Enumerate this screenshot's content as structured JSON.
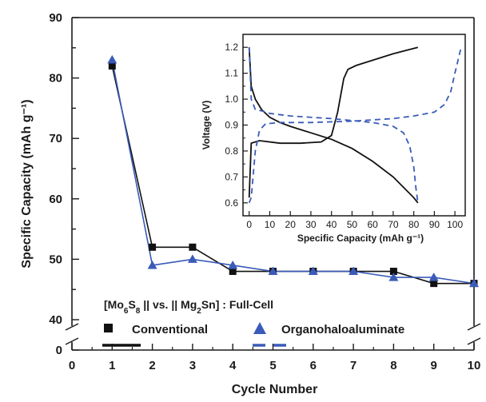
{
  "chart_data": [
    {
      "type": "line",
      "xlabel": "Cycle Number",
      "ylabel": "Specific Capacity (mAh g⁻¹)",
      "xlim": [
        0,
        10
      ],
      "ylim": [
        40,
        90
      ],
      "y_axis_break": true,
      "x_ticks": [
        "0",
        "1",
        "2",
        "3",
        "4",
        "5",
        "6",
        "7",
        "8",
        "9",
        "10"
      ],
      "y_ticks": [
        "40",
        "50",
        "60",
        "70",
        "80",
        "90"
      ],
      "y_break_zero_label": "0",
      "legend": {
        "title_parts": [
          "[Mo",
          "6",
          "S",
          "8",
          " || vs. || Mg",
          "2",
          "Sn] : Full-Cell"
        ],
        "placement": "bottom-left"
      },
      "series": [
        {
          "name": "Conventional",
          "marker": "square",
          "color": "#111111",
          "x": [
            1,
            2,
            3,
            4,
            5,
            6,
            7,
            8,
            9,
            10
          ],
          "y": [
            82,
            52,
            52,
            48,
            48,
            48,
            48,
            48,
            46,
            46
          ]
        },
        {
          "name": "Organohaloaluminate",
          "marker": "triangle",
          "color": "#3a5bb8",
          "x": [
            1,
            2,
            3,
            4,
            5,
            6,
            7,
            8,
            9,
            10
          ],
          "y": [
            83,
            49,
            50,
            49,
            48,
            48,
            48,
            47,
            47,
            46
          ]
        }
      ]
    },
    {
      "type": "line",
      "inset": true,
      "xlabel": "Specific Capacity (mAh g⁻¹)",
      "ylabel": "Voltage (V)",
      "xlim": [
        -3,
        105
      ],
      "ylim": [
        0.55,
        1.25
      ],
      "x_ticks": [
        "0",
        "10",
        "20",
        "30",
        "40",
        "50",
        "60",
        "70",
        "80",
        "90",
        "100"
      ],
      "y_ticks": [
        "0.6",
        "0.7",
        "0.8",
        "0.9",
        "1.0",
        "1.1",
        "1.2"
      ],
      "series": [
        {
          "style": "solid",
          "color": "#111111",
          "curves": [
            {
              "x": [
                0,
                1,
                5,
                15,
                25,
                35,
                40,
                43,
                46,
                48,
                52,
                60,
                70,
                82
              ],
              "y": [
                0.62,
                0.83,
                0.84,
                0.83,
                0.83,
                0.835,
                0.86,
                0.95,
                1.08,
                1.115,
                1.13,
                1.15,
                1.175,
                1.2
              ]
            },
            {
              "x": [
                0,
                1,
                3,
                6,
                10,
                15,
                20,
                30,
                40,
                50,
                60,
                70,
                80,
                82
              ],
              "y": [
                1.2,
                1.05,
                1.0,
                0.96,
                0.93,
                0.91,
                0.895,
                0.87,
                0.845,
                0.81,
                0.76,
                0.7,
                0.62,
                0.6
              ]
            }
          ]
        },
        {
          "style": "dashed",
          "color": "#3a5bb8",
          "curves": [
            {
              "x": [
                0,
                1,
                3,
                5,
                8,
                15,
                30,
                50,
                70,
                80,
                90,
                95,
                98,
                100,
                103
              ],
              "y": [
                0.6,
                0.62,
                0.8,
                0.88,
                0.905,
                0.91,
                0.91,
                0.915,
                0.925,
                0.935,
                0.95,
                0.98,
                1.03,
                1.1,
                1.2
              ]
            },
            {
              "x": [
                0,
                1,
                3,
                6,
                10,
                20,
                40,
                60,
                70,
                75,
                78,
                80,
                81,
                82
              ],
              "y": [
                1.2,
                1.0,
                0.96,
                0.955,
                0.945,
                0.935,
                0.925,
                0.91,
                0.895,
                0.87,
                0.82,
                0.74,
                0.66,
                0.6
              ]
            }
          ]
        }
      ]
    }
  ]
}
